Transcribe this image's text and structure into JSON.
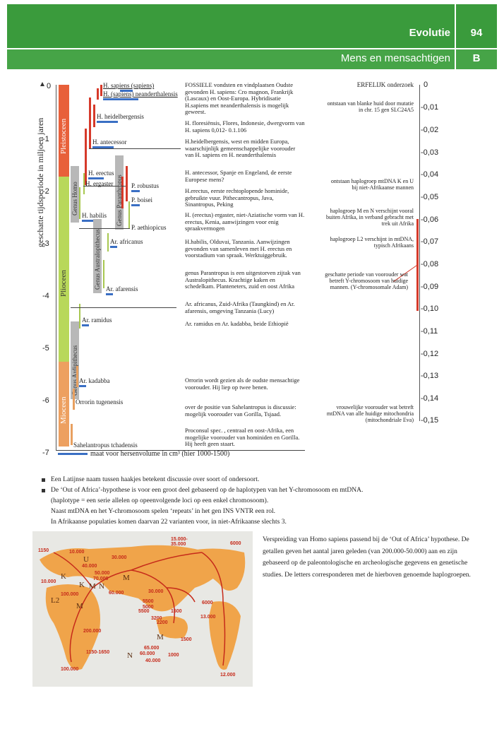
{
  "header": {
    "title": "Evolutie",
    "subtitle": "Mens en mensachtigen",
    "page_number": "94",
    "section_letter": "B"
  },
  "chart": {
    "y_axis_label": "geschatte tijdsperiode in miljoen jaren",
    "y_ticks": [
      "0",
      "-1",
      "-2",
      "-3",
      "-4",
      "-5",
      "-6",
      "-7"
    ],
    "eras": [
      "Pleistoceen",
      "Plioceen",
      "Mioceen"
    ],
    "genera": [
      "Genus Homo",
      "Genus Australopithecus",
      "Genus Paranthropus",
      "Genus Ardipithecus"
    ],
    "species": [
      "H. sapiens (sapiens)",
      "H. (sapiens) neanderthalensis",
      "H. heidelbergensis",
      "H. antecessor",
      "H. erectus",
      "H. ergaster",
      "P. robustus",
      "P. boisei",
      "H. habilis",
      "P. aethiopicus",
      "Ar. africanus",
      "Ar. afarensis",
      "Ar. ramidus",
      "Ar. kadabba",
      "Orrorin tugenensis",
      "Sahelantropus tchadensis"
    ],
    "x_caption": "maat voor hersenvolume in cm³ (hier 1000-1500)"
  },
  "fossils": [
    "FOSSIELE vondsten en vindplaatsen Oudste gevonden H. sapiens: Cro magnon, Frankrijk (Lascaux) en Oost-Europa. Hybridisatie H.sapiens met neanderthalensis is mogelijk geweest.",
    "H. floresiënsis, Flores, Indonesie, dwergvorm van H. sapiens 0,012- 0.1.106",
    "H.heidelbergensis, west en midden Europa, waarschijnlijk gemeenschappelijke voorouder van H. sapiens en H. neanderthalensis",
    "H. antecessor, Spanje en Engeland, de eerste Europese mens?",
    "H.erectus, eerste rechtoplopende hominide, gebruikte vuur. Pithecantropus, Java, Sinantropus, Peking",
    "H. (erectus) ergaster, niet-Aziatische vorm van H. erectus, Kenia, aanwijzingen voor enig spraakvermogen",
    "H.habilis, Olduvai, Tanzania. Aanwijzingen gevonden van samenleven met H. erectus en voorstadium van spraak. Werktuiggebruik.",
    "genus Parantropus is een uitgestorven zijtak van Australopithecus. Krachtige kaken en schedelkam. Planteneters, zuid en oost Afrika",
    "Ar. africanus, Zuid-Afrika (Taungkind) en Ar. afarensis, omgeving Tanzania (Lucy)",
    "Ar. ramidus en Ar. kadabba, beide Ethiopië",
    "Orrorin wordt gezien als de oudste mensachtige voorouder. Hij liep op twee benen.",
    "over de positie van Sahelantropus is discussie: mogelijk voorouder van Gorilla, Tsjaad.",
    "Proconsul spec. , centraal en oost-Afrika, een mogelijke voorouder van hominiden en Gorilla. Hij heeft geen staart."
  ],
  "genetics": {
    "title": "ERFELIJK onderzoek",
    "ticks": [
      "0",
      "-0,01",
      "-0,02",
      "-0,03",
      "-0,04",
      "-0,05",
      "-0,06",
      "-0,07",
      "-0,08",
      "-0,09",
      "-0,10",
      "-0,11",
      "-0,12",
      "-0,13",
      "-0,14",
      "-0,15"
    ],
    "notes": [
      "ontstaan van blanke huid door mutatie in chr. 15 gen SLC24A5",
      "ontstaan haplogroep mtDNA K en U bij niet-Afrikaanse mannen",
      "haplogroep M en N verschijnt vooral buiten Afrika, in verband gebracht met trek uit Afrika",
      "haplogroep L2 verschijnt in mtDNA, typisch Afrikaans",
      "geschatte periode van voorouder wat betreft Y-chromosoom van huidige mannen. (Y-chromosomale Adam)",
      "vrouwelijke voorouder wat betreft mtDNA van alle huidige mitochondria (mitochondriale Eva)"
    ]
  },
  "bullets": [
    "Een Latijnse naam tussen haakjes betekent discussie over soort of ondersoort.",
    "De ‘Out of Africa’-hypothese is voor een groot deel gebaseerd op de haplotypen van het Y-chromosoom en mtDNA.",
    "(haplotype = een serie allelen op opeenvolgende loci op een enkel chromosoom).",
    "Naast mtDNA en het Y-chromosoom spelen ‘repeats’ in het gen INS VNTR een rol.",
    "In Afrikaanse populaties komen daarvan 22 varianten voor, in niet-Afrikaanse slechts 3."
  ],
  "map_caption": "Verspreiding van Homo sapiens passend bij de ‘Out of Africa’ hypothese. De getallen geven het aantal jaren geleden (van 200.000-50.000) aan en zijn gebaseerd op de paleontologische en archeologische gegevens en genetische studies. De letters corresponderen met de hierboven genoemde haplogroepen.",
  "map_numbers": [
    "1150",
    "10.000",
    "30.000",
    "40.000",
    "50.000",
    "70.000",
    "40.000",
    "60.000",
    "30.000",
    "5500",
    "5000",
    "10.000",
    "100.000",
    "200.000",
    "1150-1650",
    "100.000",
    "15.000-35.000",
    "6000",
    "6000",
    "1500",
    "13.000",
    "3200",
    "5500",
    "2200",
    "2000",
    "1500",
    "65.000",
    "60.000",
    "40.000",
    "1000",
    "12.000"
  ],
  "map_letters": [
    "U",
    "K",
    "K",
    "M",
    "N",
    "M",
    "L2",
    "M",
    "M",
    "N"
  ]
}
